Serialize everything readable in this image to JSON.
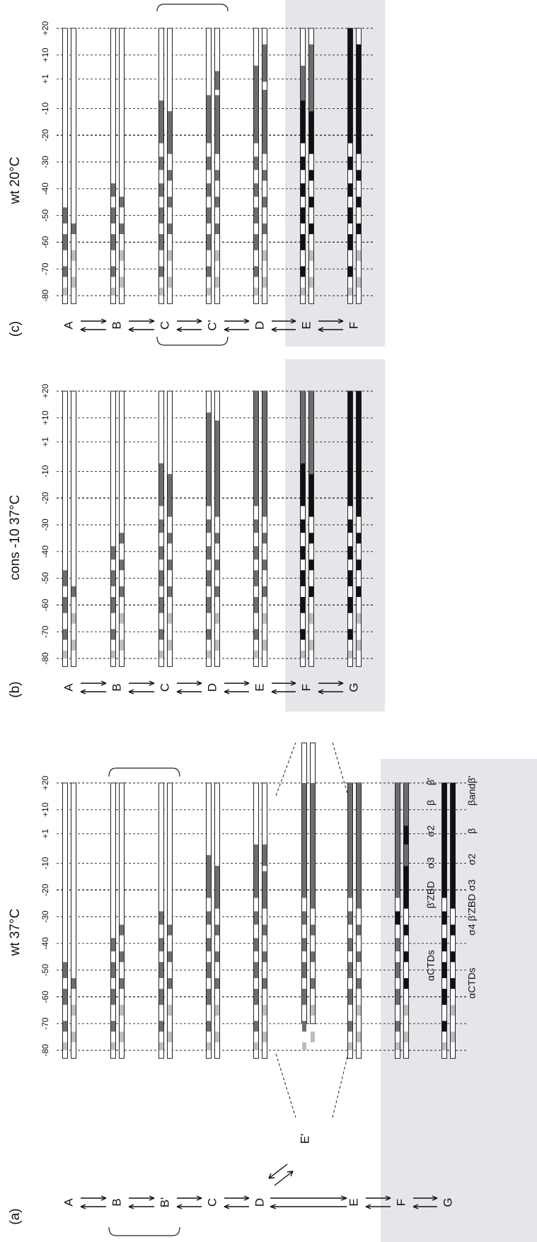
{
  "figure": {
    "colors": {
      "background": "#ffffff",
      "panel_shade": "#e4e6ea",
      "band_light": "#bdbdbd",
      "band_mid": "#6d6d6d",
      "band_dark": "#111111",
      "strand_outline": "#222222",
      "text": "#111111"
    },
    "tick_labels": [
      "-80",
      "-70",
      "-60",
      "-50",
      "-40",
      "-30",
      "-20",
      "-10",
      "+1",
      "+10",
      "+20"
    ],
    "tick_positions": [
      -80,
      -70,
      -60,
      -50,
      -40,
      -30,
      -20,
      -10,
      1,
      10,
      20
    ],
    "panels": [
      {
        "id": "c",
        "label": "(c)",
        "title": "wt 20°C",
        "states": [
          "A",
          "B",
          "C",
          "C'",
          "D",
          "E",
          "F"
        ],
        "bracket": [
          "C",
          "C'"
        ],
        "shaded_from": "E",
        "strand_colors_top": {
          "A": [
            "mid"
          ],
          "B": [
            "mid"
          ],
          "C": [
            "mid"
          ],
          "C'": [
            "mid"
          ],
          "D": [
            "mid"
          ],
          "E": [
            "dark"
          ],
          "F": [
            "dark"
          ]
        }
      },
      {
        "id": "b",
        "label": "(b)",
        "title": "cons -10 37°C",
        "states": [
          "A",
          "B",
          "C",
          "D",
          "E",
          "F",
          "G"
        ],
        "bracket": [],
        "shaded_from": "F",
        "strand_colors_top": {}
      },
      {
        "id": "a",
        "label": "(a)",
        "title": "wt 37°C",
        "states": [
          "A",
          "B",
          "B'",
          "C",
          "D",
          "E'",
          "E",
          "F",
          "G"
        ],
        "bracket": [
          "B",
          "B'"
        ],
        "shaded_from": "F",
        "strand_colors_top": {},
        "annotations_row1": [
          "αCTDs",
          "β'ZBD",
          "σ3",
          "σ2",
          "β",
          "β'"
        ],
        "annotations_row2": [
          "αCTDs",
          "σ4 β'ZBD σ3",
          "σ2",
          "β",
          "βandβ'"
        ]
      }
    ]
  }
}
